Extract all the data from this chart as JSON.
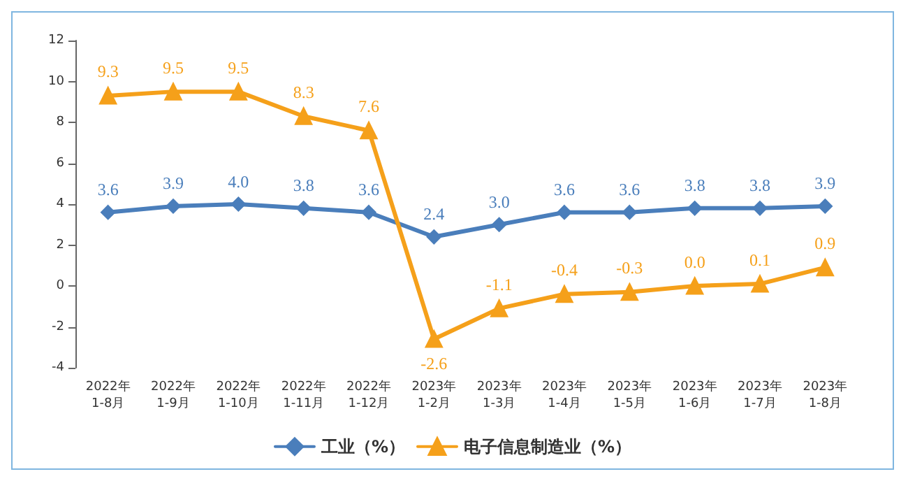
{
  "chart_data": {
    "type": "line",
    "categories": [
      "2022年\n1-8月",
      "2022年\n1-9月",
      "2022年\n1-10月",
      "2022年\n1-11月",
      "2022年\n1-12月",
      "2023年\n1-2月",
      "2023年\n1-3月",
      "2023年\n1-4月",
      "2023年\n1-5月",
      "2023年\n1-6月",
      "2023年\n1-7月",
      "2023年\n1-8月"
    ],
    "series": [
      {
        "name": "工业（%）",
        "color": "#4a7ebb",
        "marker": "diamond",
        "values": [
          3.6,
          3.9,
          4.0,
          3.8,
          3.6,
          2.4,
          3.0,
          3.6,
          3.6,
          3.8,
          3.8,
          3.9
        ],
        "value_labels": [
          "3.6",
          "3.9",
          "4.0",
          "3.8",
          "3.6",
          "2.4",
          "3.0",
          "3.6",
          "3.6",
          "3.8",
          "3.8",
          "3.9"
        ]
      },
      {
        "name": "电子信息制造业（%）",
        "color": "#f5a01a",
        "marker": "triangle",
        "values": [
          9.3,
          9.5,
          9.5,
          8.3,
          7.6,
          -2.6,
          -1.1,
          -0.4,
          -0.3,
          0.0,
          0.1,
          0.9
        ],
        "value_labels": [
          "9.3",
          "9.5",
          "9.5",
          "8.3",
          "7.6",
          "-2.6",
          "-1.1",
          "-0.4",
          "-0.3",
          "0.0",
          "0.1",
          "0.9"
        ]
      }
    ],
    "ylim": [
      -4,
      12
    ],
    "yticks": [
      -4,
      -2,
      0,
      2,
      4,
      6,
      8,
      10,
      12
    ],
    "grid": false,
    "legend": "bottom"
  }
}
